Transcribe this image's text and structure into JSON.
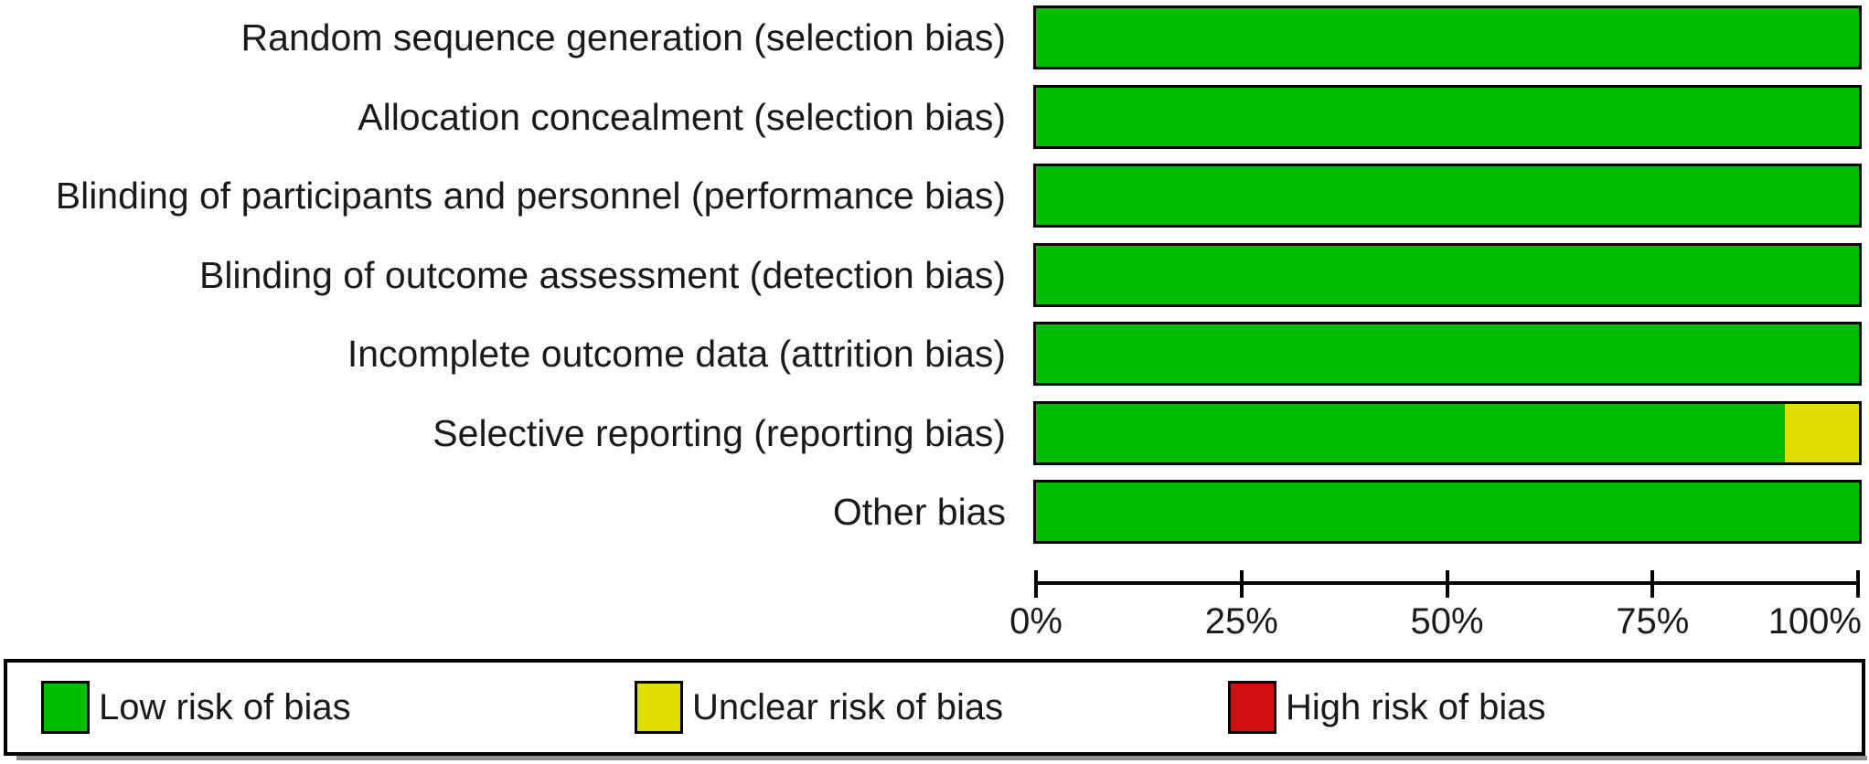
{
  "figure": {
    "background": "#FFFFFF",
    "border_color": "#000000"
  },
  "chart_data": {
    "type": "bar",
    "orientation": "horizontal",
    "stacked": true,
    "title": "",
    "xlabel": "",
    "ylabel": "",
    "categories": [
      "Random sequence generation (selection bias)",
      "Allocation concealment (selection bias)",
      "Blinding of participants and personnel (performance bias)",
      "Blinding of outcome assessment (detection bias)",
      "Incomplete outcome data (attrition bias)",
      "Selective reporting (reporting bias)",
      "Other bias"
    ],
    "series": [
      {
        "name": "Low risk of bias",
        "color": "#00BD00",
        "values": [
          100,
          100,
          100,
          100,
          100,
          91,
          100
        ]
      },
      {
        "name": "Unclear risk of bias",
        "color": "#E0DE00",
        "values": [
          0,
          0,
          0,
          0,
          0,
          9,
          0
        ]
      },
      {
        "name": "High risk of bias",
        "color": "#D20E0E",
        "values": [
          0,
          0,
          0,
          0,
          0,
          0,
          0
        ]
      }
    ],
    "xlim": [
      0,
      100
    ],
    "x_ticks": [
      {
        "label": "0%",
        "value": 0
      },
      {
        "label": "25%",
        "value": 25
      },
      {
        "label": "50%",
        "value": 50
      },
      {
        "label": "75%",
        "value": 75
      },
      {
        "label": "100%",
        "value": 100
      }
    ],
    "grid": false,
    "legend_position": "bottom"
  },
  "legend": {
    "items": [
      {
        "label": "Low risk of bias",
        "color": "#00BD00"
      },
      {
        "label": "Unclear risk of bias",
        "color": "#E0DE00"
      },
      {
        "label": "High risk of bias",
        "color": "#D20E0E"
      }
    ]
  }
}
